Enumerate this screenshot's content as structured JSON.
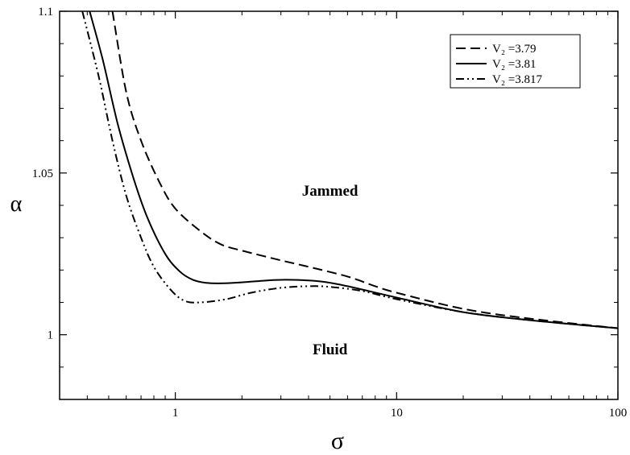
{
  "chart_data": {
    "type": "line",
    "x_scale": "log",
    "xlabel": "σ",
    "ylabel": "α",
    "xlim": [
      0.3,
      100
    ],
    "ylim": [
      0.98,
      1.1
    ],
    "x_ticks": [
      {
        "value": 1,
        "label": "1"
      },
      {
        "value": 10,
        "label": "10"
      },
      {
        "value": 100,
        "label": "100"
      }
    ],
    "y_ticks": [
      {
        "value": 1.0,
        "label": "1"
      },
      {
        "value": 1.05,
        "label": "1.05"
      },
      {
        "value": 1.1,
        "label": "1.1"
      }
    ],
    "legend_position": "top-right",
    "annotations": [
      {
        "text": "Jammed",
        "x": 5.0,
        "y": 1.043
      },
      {
        "text": "Fluid",
        "x": 5.0,
        "y": 0.994
      }
    ],
    "series": [
      {
        "name": "V₂ =3.79",
        "style": "dashed",
        "points": [
          [
            0.52,
            1.1
          ],
          [
            0.6,
            1.075
          ],
          [
            0.7,
            1.06
          ],
          [
            0.85,
            1.047
          ],
          [
            1.0,
            1.039
          ],
          [
            1.3,
            1.032
          ],
          [
            1.6,
            1.028
          ],
          [
            2.0,
            1.026
          ],
          [
            3.0,
            1.023
          ],
          [
            4.0,
            1.021
          ],
          [
            6.0,
            1.018
          ],
          [
            8.0,
            1.015
          ],
          [
            10,
            1.013
          ],
          [
            20,
            1.008
          ],
          [
            40,
            1.005
          ],
          [
            100,
            1.002
          ]
        ]
      },
      {
        "name": "V₂ =3.81",
        "style": "solid",
        "points": [
          [
            0.41,
            1.1
          ],
          [
            0.47,
            1.085
          ],
          [
            0.55,
            1.065
          ],
          [
            0.65,
            1.048
          ],
          [
            0.75,
            1.036
          ],
          [
            0.9,
            1.025
          ],
          [
            1.05,
            1.0195
          ],
          [
            1.2,
            1.017
          ],
          [
            1.4,
            1.016
          ],
          [
            1.8,
            1.016
          ],
          [
            2.5,
            1.0167
          ],
          [
            3.2,
            1.017
          ],
          [
            4.5,
            1.0165
          ],
          [
            6.0,
            1.015
          ],
          [
            10,
            1.0115
          ],
          [
            20,
            1.007
          ],
          [
            40,
            1.0045
          ],
          [
            100,
            1.002
          ]
        ]
      },
      {
        "name": "V₂ =3.817",
        "style": "dash-dot-dot",
        "points": [
          [
            0.38,
            1.1
          ],
          [
            0.45,
            1.08
          ],
          [
            0.52,
            1.06
          ],
          [
            0.6,
            1.043
          ],
          [
            0.7,
            1.03
          ],
          [
            0.8,
            1.021
          ],
          [
            0.95,
            1.014
          ],
          [
            1.1,
            1.0105
          ],
          [
            1.3,
            1.01
          ],
          [
            1.7,
            1.011
          ],
          [
            2.2,
            1.013
          ],
          [
            3.0,
            1.0145
          ],
          [
            4.0,
            1.015
          ],
          [
            5.0,
            1.0148
          ],
          [
            7.0,
            1.0135
          ],
          [
            10,
            1.011
          ],
          [
            20,
            1.007
          ],
          [
            40,
            1.0045
          ],
          [
            100,
            1.002
          ]
        ]
      }
    ]
  }
}
